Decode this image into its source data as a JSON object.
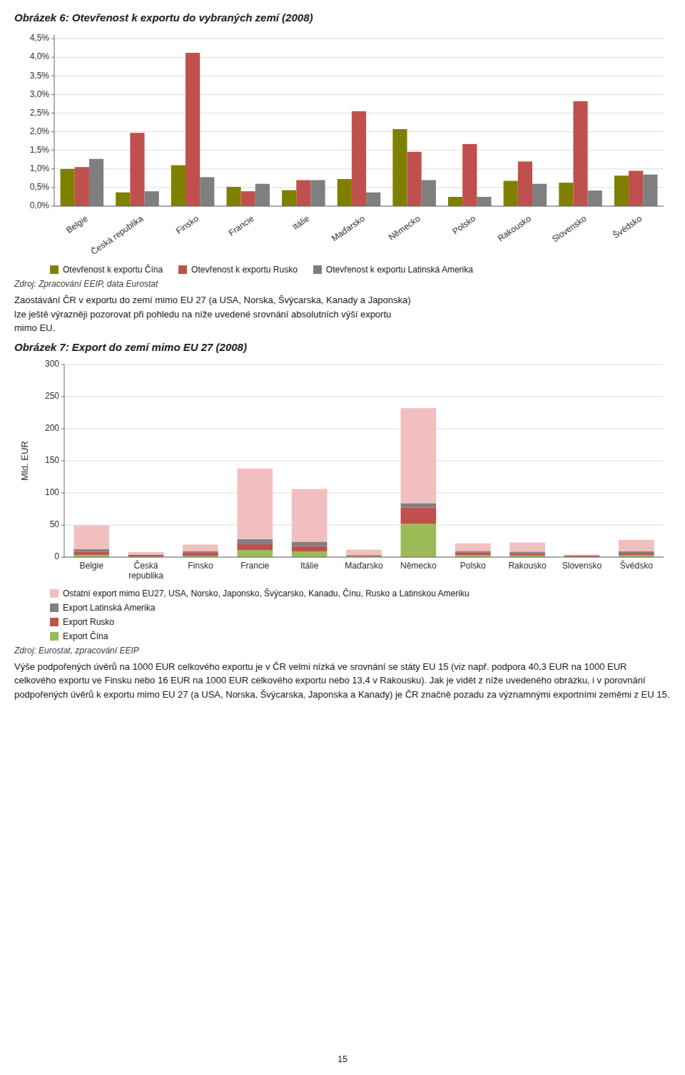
{
  "chart_data": [
    {
      "type": "bar",
      "title": "Obrázek 6: Otevřenost k exportu do vybraných zemí (2008)",
      "categories": [
        "Belgie",
        "Česká republika",
        "Finsko",
        "Francie",
        "Itálie",
        "Maďarsko",
        "Německo",
        "Polsko",
        "Rakousko",
        "Slovensko",
        "Švédsko"
      ],
      "series": [
        {
          "name": "Otevřenost k exportu Čína",
          "color": "#808000",
          "values": [
            0.01,
            0.0037,
            0.011,
            0.0052,
            0.0043,
            0.0073,
            0.0207,
            0.0025,
            0.0068,
            0.0063,
            0.0082
          ]
        },
        {
          "name": "Otevřenost k exportu Rusko",
          "color": "#C0504D",
          "values": [
            0.0105,
            0.0197,
            0.0412,
            0.004,
            0.007,
            0.0255,
            0.0146,
            0.0167,
            0.012,
            0.0282,
            0.0095
          ]
        },
        {
          "name": "Otevřenost k exportu Latinská Amerika",
          "color": "#7F7F7F",
          "values": [
            0.0127,
            0.004,
            0.0078,
            0.006,
            0.007,
            0.0037,
            0.007,
            0.0025,
            0.006,
            0.0042,
            0.0085
          ]
        }
      ],
      "ylim": [
        0,
        0.046
      ],
      "yticks": [
        {
          "value": 0,
          "label": "0,0%"
        },
        {
          "value": 0.005,
          "label": "0,5%"
        },
        {
          "value": 0.01,
          "label": "1,0%"
        },
        {
          "value": 0.015,
          "label": "1,5%"
        },
        {
          "value": 0.02,
          "label": "2,0%"
        },
        {
          "value": 0.025,
          "label": "2,5%"
        },
        {
          "value": 0.03,
          "label": "3,0%"
        },
        {
          "value": 0.035,
          "label": "3,5%"
        },
        {
          "value": 0.04,
          "label": "4,0%"
        },
        {
          "value": 0.045,
          "label": "4,5%"
        }
      ],
      "grid": true,
      "legend": "bottom",
      "source": "Zdroj: Zpracování EEIP, data Eurostat",
      "body_text": [
        "Zaostávání ČR v exportu do zemí mimo EU 27 (a USA, Norska, Švýcarska, Kanady a Japonska)",
        "lze ještě výrazněji pozorovat při pohledu na níže uvedené srovnání absolutních výší exportu",
        "mimo EU."
      ]
    },
    {
      "type": "bar",
      "title": "Obrázek 7: Export do zemí mimo EU 27 (2008)",
      "categories": [
        "Belgie",
        "Česká\nrepublika",
        "Finsko",
        "Francie",
        "Itálie",
        "Maďarsko",
        "Německo",
        "Polsko",
        "Rakousko",
        "Slovensko",
        "Švédsko"
      ],
      "series": [
        {
          "name": "Export Čína",
          "color": "#9BBB59",
          "values": [
            3.5,
            1.0,
            2.0,
            11.0,
            9.0,
            1.5,
            52.0,
            3.0,
            2.5,
            0.5,
            3.0
          ]
        },
        {
          "name": "Export Rusko",
          "color": "#C0504D",
          "values": [
            5.0,
            2.5,
            5.5,
            9.0,
            8.0,
            1.5,
            25.0,
            4.5,
            3.5,
            2.0,
            3.5
          ]
        },
        {
          "name": "Export Latinská Amerika",
          "color": "#808080",
          "values": [
            4.0,
            0.5,
            2.0,
            8.0,
            7.0,
            0.5,
            7.0,
            2.0,
            2.5,
            0.3,
            2.5
          ]
        },
        {
          "name": "Ostatní export mimo EU27, USA, Norsko, Japonsko, Švýcarsko, Kanadu, Čínu, Rusko a Latinskou Ameriku",
          "color": "#F2BFBF",
          "values": [
            37.0,
            4.0,
            10.0,
            110.0,
            82.0,
            8.0,
            148.0,
            12.0,
            14.0,
            1.0,
            18.0
          ]
        }
      ],
      "ylabel": "Mld. EUR",
      "ylim": [
        0,
        300
      ],
      "yticks": [
        0,
        50,
        100,
        150,
        200,
        250,
        300
      ],
      "stacked": true,
      "grid": true,
      "legend": "bottom",
      "source": "Zdroj: Eurostat, zpracování EEIP",
      "body_text": [
        "Výše podpořených úvěrů na 1000 EUR celkového exportu je v ČR velmi nízká ve srovnání se státy EU 15 (viz např. podpora 40,3 EUR na 1000 EUR celkového exportu ve Finsku nebo 16 EUR na 1000 EUR celkového exportu nebo 13,4 v Rakousku). Jak je vidět z níže uvedeného obrázku, i v porovnání podpořených úvěrů k exportu mimo EU 27 (a USA, Norska, Švýcarska, Japonska a Kanady) je ČR značně pozadu za významnými exportními zeměmi z EU 15."
      ]
    }
  ],
  "page_number": "15"
}
